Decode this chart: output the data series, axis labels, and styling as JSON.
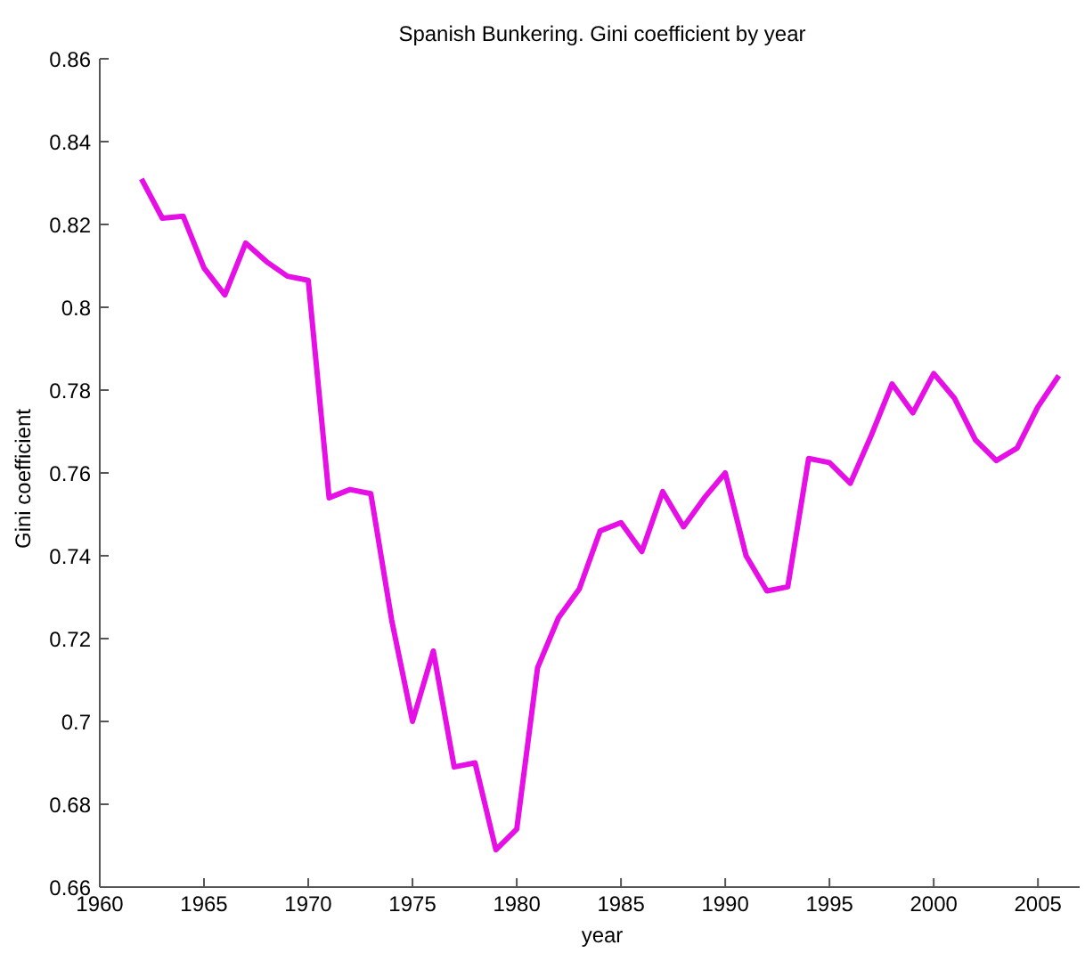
{
  "chart_data": {
    "type": "line",
    "title": "Spanish Bunkering. Gini coefficient by year",
    "xlabel": "year",
    "ylabel": "Gini coefficient",
    "x": [
      1962,
      1963,
      1964,
      1965,
      1966,
      1967,
      1968,
      1969,
      1970,
      1971,
      1972,
      1973,
      1974,
      1975,
      1976,
      1977,
      1978,
      1979,
      1980,
      1981,
      1982,
      1983,
      1984,
      1985,
      1986,
      1987,
      1988,
      1989,
      1990,
      1991,
      1992,
      1993,
      1994,
      1995,
      1996,
      1997,
      1998,
      1999,
      2000,
      2001,
      2002,
      2003,
      2004,
      2005,
      2006
    ],
    "series": [
      {
        "color": "#e60fe6",
        "values": [
          0.831,
          0.8215,
          0.822,
          0.8095,
          0.803,
          0.8155,
          0.811,
          0.8075,
          0.8065,
          0.754,
          0.756,
          0.755,
          0.7245,
          0.7,
          0.717,
          0.689,
          0.69,
          0.669,
          0.674,
          0.713,
          0.725,
          0.732,
          0.746,
          0.748,
          0.741,
          0.7555,
          0.747,
          0.754,
          0.76,
          0.74,
          0.7315,
          0.7325,
          0.7635,
          0.7625,
          0.7575,
          0.769,
          0.7815,
          0.7745,
          0.784,
          0.778,
          0.768,
          0.763,
          0.766,
          0.776,
          0.7835
        ]
      }
    ],
    "xlim": [
      1960,
      2007
    ],
    "xticks": [
      1960,
      1965,
      1970,
      1975,
      1980,
      1985,
      1990,
      1995,
      2000,
      2005
    ],
    "ylim": [
      0.66,
      0.86
    ],
    "yticks": [
      0.66,
      0.68,
      0.7,
      0.72,
      0.74,
      0.76,
      0.78,
      0.8,
      0.82,
      0.84,
      0.86
    ],
    "grid": false,
    "legend": false,
    "marker": "none",
    "line_style": "solid"
  }
}
